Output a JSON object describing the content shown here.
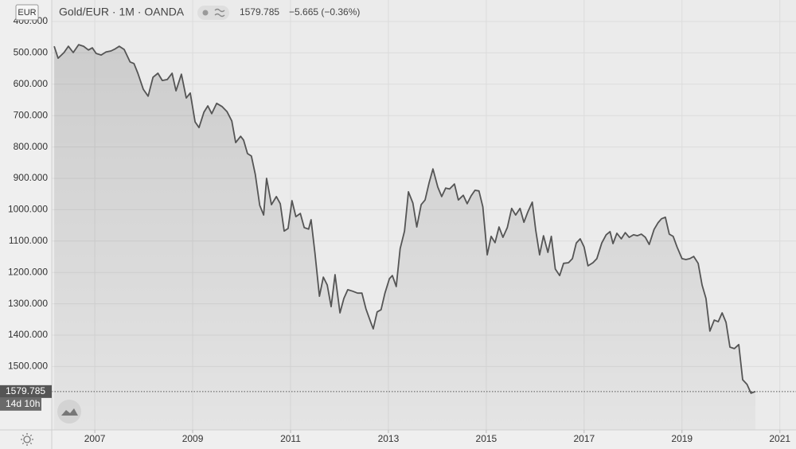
{
  "chart_data": {
    "type": "area",
    "currency": "EUR",
    "symbol": "Gold/EUR · 1M · OANDA",
    "change": "−5.665 (−0.36%)",
    "countdown": "14d 10h",
    "inverted": true,
    "grid": true,
    "x": [
      2006.17,
      2006.25,
      2006.37,
      2006.46,
      2006.56,
      2006.67,
      2006.77,
      2006.87,
      2006.95,
      2007.03,
      2007.13,
      2007.23,
      2007.33,
      2007.42,
      2007.5,
      2007.6,
      2007.72,
      2007.8,
      2007.88,
      2007.99,
      2008.09,
      2008.19,
      2008.29,
      2008.38,
      2008.48,
      2008.58,
      2008.66,
      2008.77,
      2008.87,
      2008.95,
      2009.05,
      2009.13,
      2009.23,
      2009.31,
      2009.39,
      2009.49,
      2009.6,
      2009.7,
      2009.8,
      2009.88,
      2009.98,
      2010.04,
      2010.12,
      2010.2,
      2010.28,
      2010.37,
      2010.45,
      2010.51,
      2010.61,
      2010.71,
      2010.79,
      2010.87,
      2010.95,
      2011.03,
      2011.11,
      2011.2,
      2011.28,
      2011.37,
      2011.42,
      2011.5,
      2011.59,
      2011.67,
      2011.75,
      2011.83,
      2011.91,
      2012.01,
      2012.09,
      2012.17,
      2012.27,
      2012.37,
      2012.46,
      2012.54,
      2012.64,
      2012.69,
      2012.77,
      2012.85,
      2012.93,
      2013.02,
      2013.08,
      2013.16,
      2013.24,
      2013.33,
      2013.41,
      2013.5,
      2013.58,
      2013.67,
      2013.75,
      2013.83,
      2013.91,
      2014.01,
      2014.09,
      2014.17,
      2014.25,
      2014.35,
      2014.43,
      2014.53,
      2014.61,
      2014.69,
      2014.77,
      2014.85,
      2014.93,
      2015.02,
      2015.1,
      2015.18,
      2015.26,
      2015.34,
      2015.43,
      2015.52,
      2015.6,
      2015.69,
      2015.77,
      2015.85,
      2015.94,
      2016.01,
      2016.09,
      2016.17,
      2016.26,
      2016.33,
      2016.41,
      2016.5,
      2016.58,
      2016.68,
      2016.76,
      2016.84,
      2016.92,
      2017.0,
      2017.08,
      2017.18,
      2017.26,
      2017.36,
      2017.45,
      2017.53,
      2017.59,
      2017.67,
      2017.76,
      2017.84,
      2017.92,
      2018.01,
      2018.09,
      2018.17,
      2018.25,
      2018.33,
      2018.43,
      2018.51,
      2018.58,
      2018.66,
      2018.74,
      2018.82,
      2018.9,
      2019.0,
      2019.08,
      2019.16,
      2019.24,
      2019.33,
      2019.41,
      2019.49,
      2019.57,
      2019.66,
      2019.74,
      2019.82,
      2019.9,
      2019.98,
      2020.07,
      2020.16,
      2020.24,
      2020.33,
      2020.41,
      2020.5
    ],
    "series": [
      {
        "name": "Gold/EUR",
        "color": "#555555",
        "values": [
          479,
          517,
          499,
          479,
          499,
          474,
          479,
          491,
          484,
          502,
          507,
          497,
          494,
          487,
          479,
          489,
          529,
          534,
          565,
          616,
          638,
          578,
          565,
          588,
          585,
          565,
          621,
          568,
          644,
          628,
          720,
          738,
          689,
          669,
          694,
          661,
          671,
          687,
          717,
          786,
          766,
          778,
          821,
          829,
          887,
          986,
          1017,
          900,
          984,
          958,
          981,
          1068,
          1060,
          971,
          1022,
          1012,
          1057,
          1062,
          1032,
          1139,
          1276,
          1215,
          1240,
          1309,
          1207,
          1329,
          1283,
          1255,
          1260,
          1266,
          1266,
          1316,
          1359,
          1380,
          1326,
          1319,
          1266,
          1220,
          1210,
          1245,
          1124,
          1068,
          943,
          979,
          1055,
          984,
          969,
          915,
          870,
          928,
          958,
          931,
          934,
          918,
          969,
          954,
          981,
          956,
          938,
          940,
          991,
          1144,
          1085,
          1105,
          1055,
          1088,
          1057,
          996,
          1017,
          996,
          1040,
          1007,
          976,
          1065,
          1144,
          1083,
          1136,
          1085,
          1189,
          1210,
          1171,
          1169,
          1156,
          1106,
          1093,
          1119,
          1179,
          1169,
          1156,
          1106,
          1080,
          1070,
          1108,
          1075,
          1093,
          1073,
          1088,
          1080,
          1083,
          1078,
          1088,
          1111,
          1063,
          1042,
          1029,
          1024,
          1078,
          1085,
          1119,
          1156,
          1159,
          1156,
          1149,
          1171,
          1240,
          1283,
          1387,
          1352,
          1357,
          1329,
          1359,
          1438,
          1443,
          1430,
          1542,
          1557,
          1585,
          1579.785
        ]
      }
    ],
    "xlim": [
      2006.12,
      2021.33
    ],
    "xticks": [
      2007,
      2009,
      2011,
      2013,
      2015,
      2017,
      2019,
      2021
    ],
    "ylim": [
      1702,
      331.5
    ],
    "yticks": [
      {
        "value": 400,
        "label": "400.000"
      },
      {
        "value": 500,
        "label": "500.000"
      },
      {
        "value": 600,
        "label": "600.000"
      },
      {
        "value": 700,
        "label": "700.000"
      },
      {
        "value": 800,
        "label": "800.000"
      },
      {
        "value": 900,
        "label": "900.000"
      },
      {
        "value": 1000,
        "label": "1000.000"
      },
      {
        "value": 1100,
        "label": "1100.000"
      },
      {
        "value": 1200,
        "label": "1200.000"
      },
      {
        "value": 1300,
        "label": "1300.000"
      },
      {
        "value": 1400,
        "label": "1400.000"
      },
      {
        "value": 1500,
        "label": "1500.000"
      }
    ]
  }
}
